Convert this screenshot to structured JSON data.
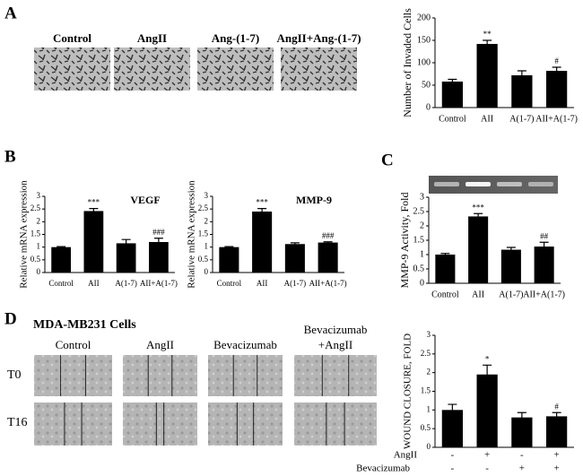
{
  "panels": {
    "letters": [
      "A",
      "B",
      "C",
      "D"
    ],
    "a_images": [
      "Control",
      "AngII",
      "Ang-(1-7)",
      "AngII+Ang-(1-7)"
    ],
    "d_title": "MDA-MB231 Cells",
    "d_columns": [
      [
        "Control"
      ],
      [
        "AngII"
      ],
      [
        "Bevacizumab"
      ],
      [
        "Bevacizumab",
        "+AngII"
      ]
    ],
    "d_rows": [
      "T0",
      "T16"
    ]
  },
  "chart_data": [
    {
      "type": "bar",
      "y_label": "Number of Invaded Cells",
      "categories": [
        "Control",
        "AII",
        "A(1-7)",
        "AII+A(1-7)"
      ],
      "values": [
        58,
        142,
        72,
        82
      ],
      "errors": [
        5,
        8,
        10,
        8
      ],
      "annotations": [
        null,
        "**",
        null,
        "#"
      ],
      "color": "#000000",
      "ylim": [
        0,
        200
      ],
      "yticks": [
        0,
        50,
        100,
        150,
        200
      ]
    },
    {
      "type": "bar",
      "title": "VEGF",
      "y_label": "Relative mRNA expression",
      "categories": [
        "Control",
        "AII",
        "A(1-7)",
        "AII+A(1-7)"
      ],
      "values": [
        1,
        2.42,
        1.15,
        1.2
      ],
      "errors": [
        0.02,
        0.1,
        0.15,
        0.15
      ],
      "annotations": [
        null,
        "***",
        null,
        "###"
      ],
      "color": "#000000",
      "ylim": [
        0,
        3
      ],
      "yticks": [
        0,
        0.5,
        1,
        1.5,
        2,
        2.5,
        3
      ]
    },
    {
      "type": "bar",
      "title": "MMP-9",
      "y_label": "Relative mRNA expression",
      "categories": [
        "Control",
        "AII",
        "A(1-7)",
        "AII+A(1-7)"
      ],
      "values": [
        1,
        2.4,
        1.12,
        1.18
      ],
      "errors": [
        0.02,
        0.12,
        0.05,
        0.03
      ],
      "annotations": [
        null,
        "***",
        null,
        "###"
      ],
      "color": "#000000",
      "ylim": [
        0,
        3
      ],
      "yticks": [
        0,
        0.5,
        1,
        1.5,
        2,
        2.5,
        3
      ]
    },
    {
      "type": "bar",
      "y_label": "MMP-9 Activity, Fold",
      "categories": [
        "Control",
        "AII",
        "A(1-7)",
        "AII+A(1-7)"
      ],
      "values": [
        1,
        2.33,
        1.17,
        1.28
      ],
      "errors": [
        0.04,
        0.1,
        0.08,
        0.15
      ],
      "annotations": [
        null,
        "***",
        null,
        "##"
      ],
      "color": "#000000",
      "ylim": [
        0,
        3
      ],
      "yticks": [
        0,
        0.5,
        1,
        1.5,
        2,
        2.5,
        3
      ]
    },
    {
      "type": "bar",
      "y_label": "WOUND CLOSURE, FOLD",
      "categories": [
        null,
        null,
        null,
        null
      ],
      "values": [
        1,
        1.95,
        0.8,
        0.83
      ],
      "errors": [
        0.15,
        0.25,
        0.13,
        0.1
      ],
      "annotations": [
        null,
        "*",
        null,
        "#"
      ],
      "color": "#000000",
      "ylim": [
        0,
        3
      ],
      "yticks": [
        0,
        0.5,
        1,
        1.5,
        2,
        2.5,
        3
      ],
      "conditions": [
        {
          "name": "AngII",
          "values": [
            "-",
            "+",
            "-",
            "+"
          ]
        },
        {
          "name": "Bevacizumab",
          "values": [
            "-",
            "-",
            "+",
            "+"
          ]
        }
      ]
    }
  ]
}
